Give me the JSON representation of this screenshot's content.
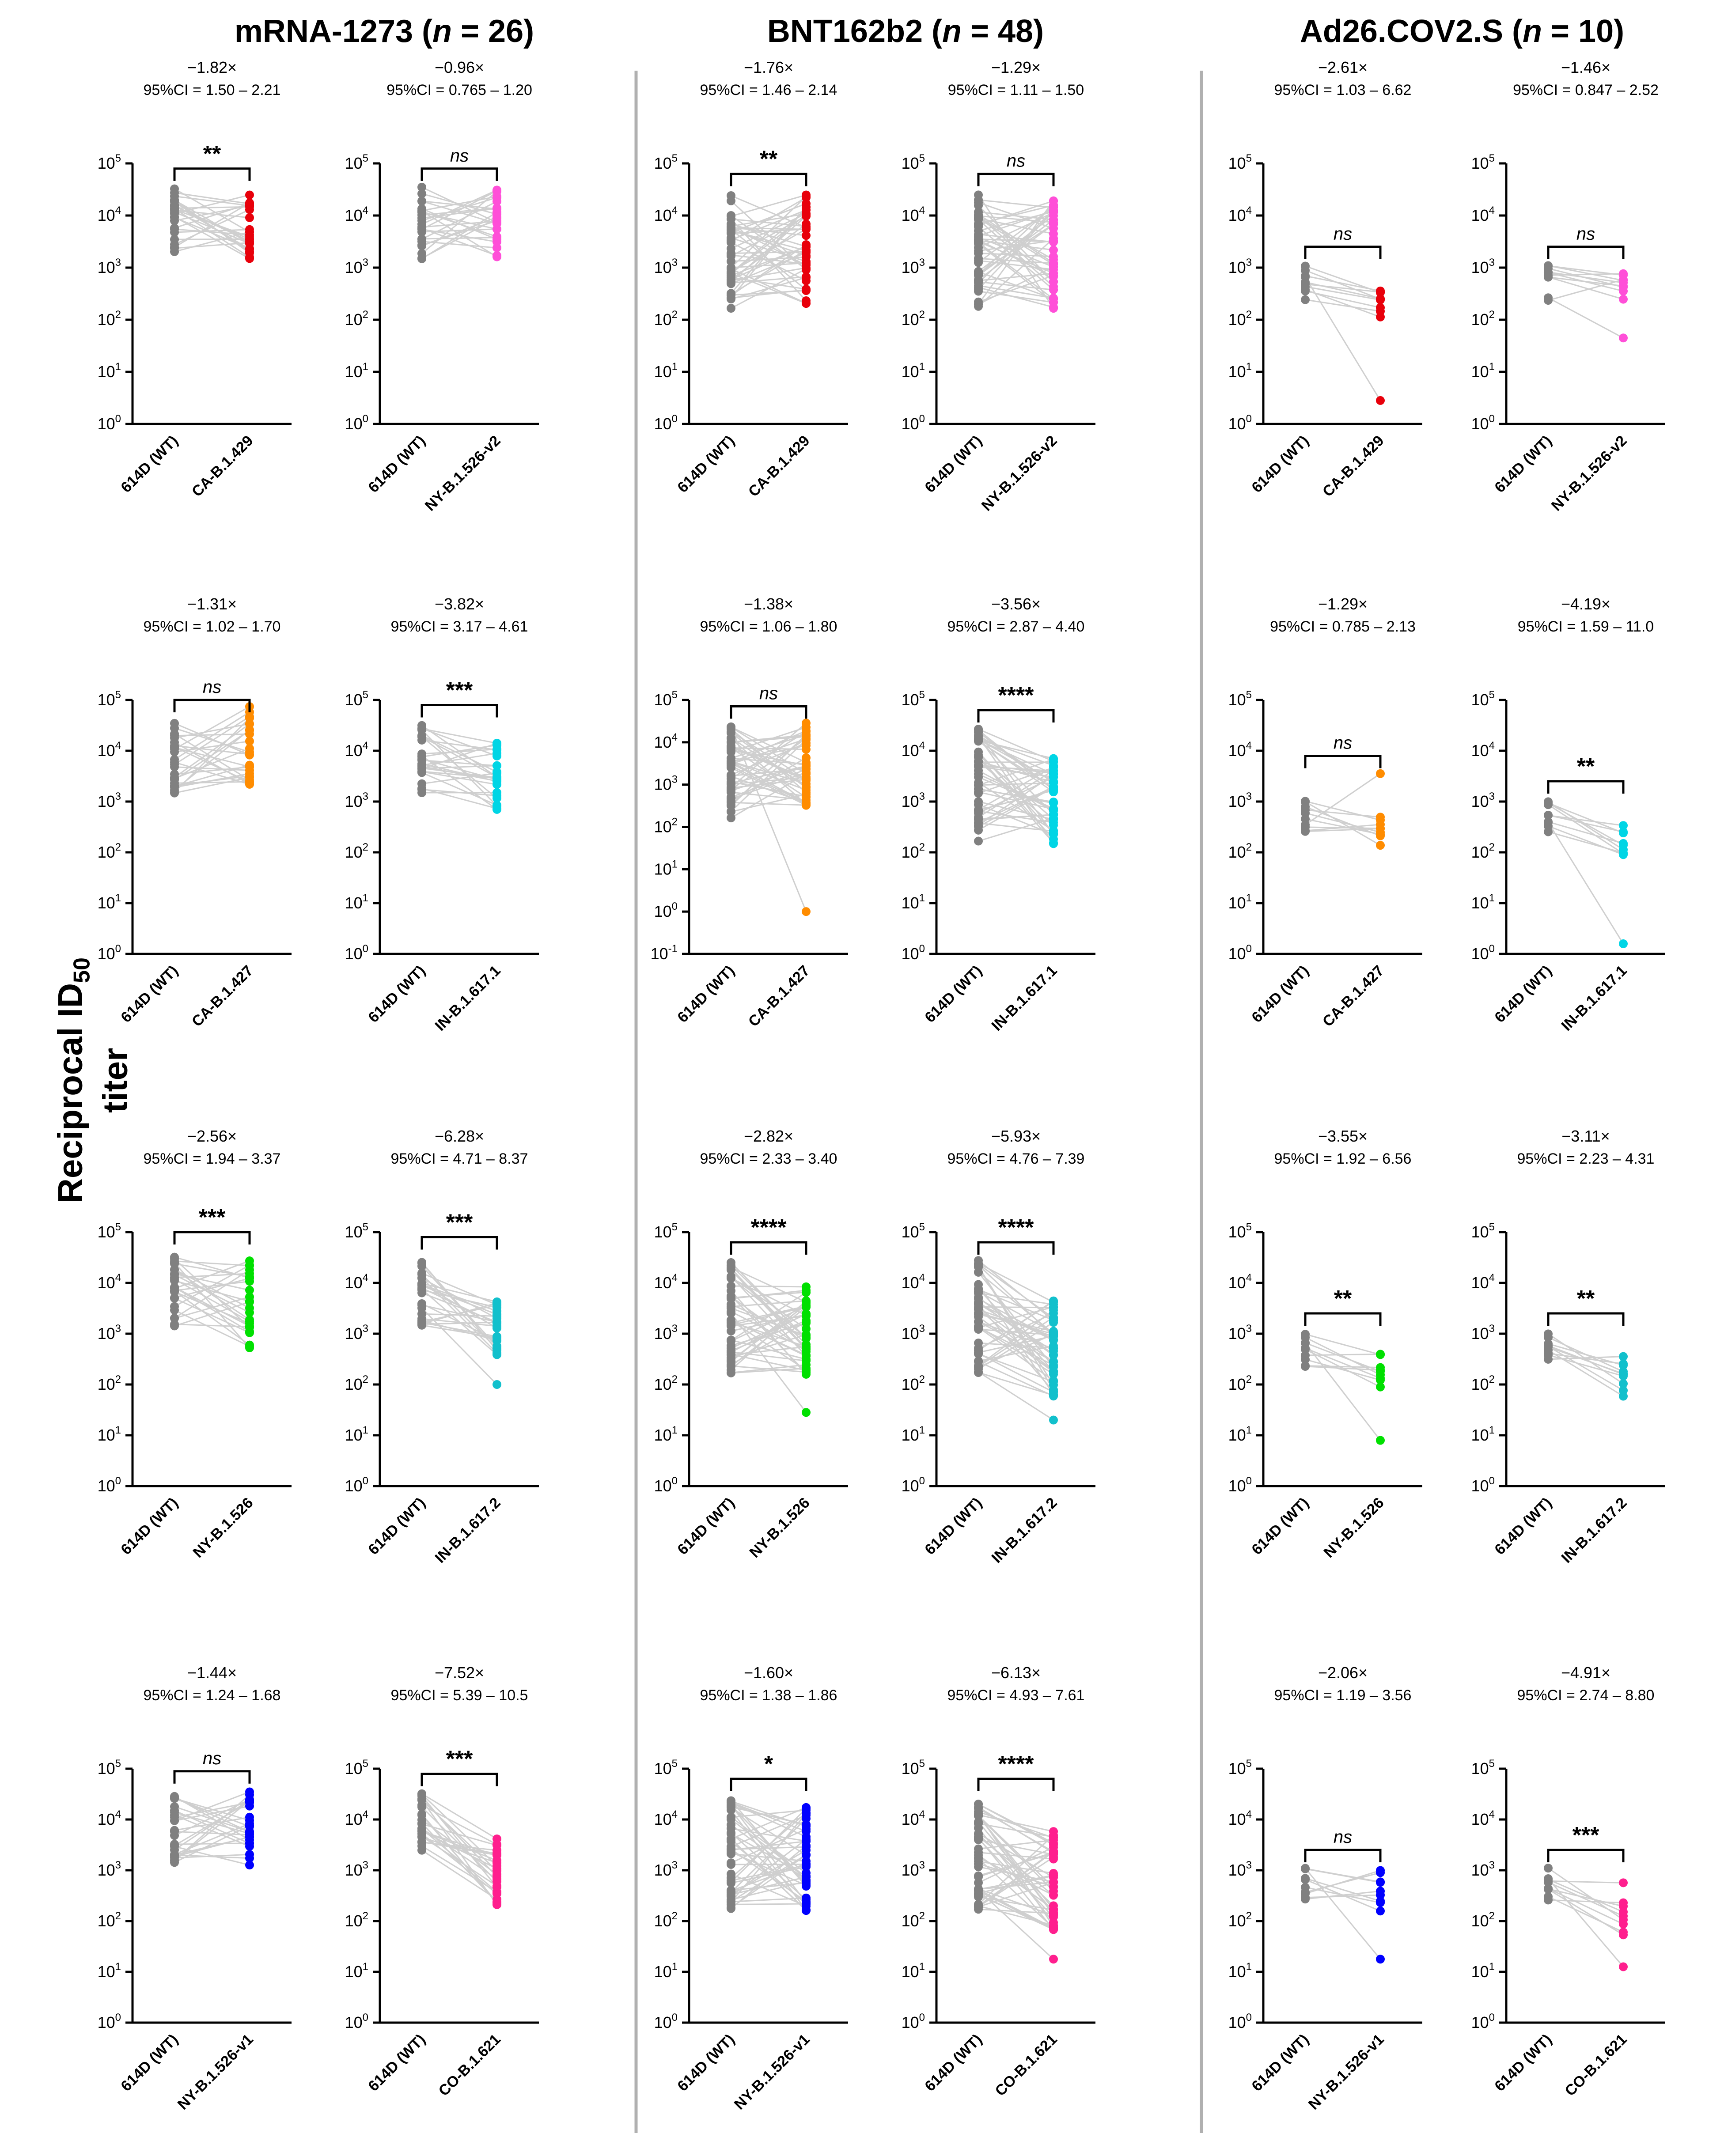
{
  "figure": {
    "group_headers": [
      {
        "name": "mRNA-1273",
        "n_text": "n",
        "eq": " = 26)",
        "open": " ("
      },
      {
        "name": "BNT162b2",
        "n_text": "n",
        "eq": " = 48)",
        "open": " ("
      },
      {
        "name": "Ad26.COV2.S",
        "n_text": "n",
        "eq": " = 10)",
        "open": " ("
      }
    ],
    "y_axis_label": {
      "main": "Reciprocal ID",
      "sub": "50",
      "tail": " titer"
    },
    "colors": {
      "wt": "#808080",
      "line": "#cfcfcf",
      "red": "#e8000b",
      "magenta": "#ff4fd8",
      "orange": "#ff8c00",
      "cyan": "#00d5e5",
      "green": "#00e000",
      "teal": "#12c0cc",
      "blue": "#0000ff",
      "pink": "#ff1f8e"
    }
  },
  "chart_data": [
    {
      "type": "scatter",
      "group": "mRNA-1273",
      "x_labels": [
        "614D (WT)",
        "CA-B.1.429"
      ],
      "fold": "−1.82×",
      "ci": "95%CI = 1.50 – 2.21",
      "sig": "**",
      "sig_italic": false,
      "ylim_exp": [
        0,
        5
      ],
      "wt_range_log": [
        3.15,
        4.55
      ],
      "var_range_log": [
        3.05,
        4.4
      ],
      "variant_color": "red",
      "n": 26
    },
    {
      "type": "scatter",
      "group": "mRNA-1273",
      "x_labels": [
        "614D (WT)",
        "NY-B.1.526-v2"
      ],
      "fold": "−0.96×",
      "ci": "95%CI = 0.765 – 1.20",
      "sig": "ns",
      "sig_italic": true,
      "ylim_exp": [
        0,
        5
      ],
      "wt_range_log": [
        3.15,
        4.55
      ],
      "var_range_log": [
        3.2,
        4.55
      ],
      "variant_color": "magenta",
      "n": 26
    },
    {
      "type": "scatter",
      "group": "BNT162b2",
      "x_labels": [
        "614D (WT)",
        "CA-B.1.429"
      ],
      "fold": "−1.76×",
      "ci": "95%CI = 1.46 – 2.14",
      "sig": "**",
      "sig_italic": false,
      "ylim_exp": [
        0,
        5
      ],
      "wt_range_log": [
        2.2,
        4.45
      ],
      "var_range_log": [
        2.3,
        4.4
      ],
      "variant_color": "red",
      "n": 48
    },
    {
      "type": "scatter",
      "group": "BNT162b2",
      "x_labels": [
        "614D (WT)",
        "NY-B.1.526-v2"
      ],
      "fold": "−1.29×",
      "ci": "95%CI = 1.11 – 1.50",
      "sig": "ns",
      "sig_italic": true,
      "ylim_exp": [
        0,
        5
      ],
      "wt_range_log": [
        2.2,
        4.45
      ],
      "var_range_log": [
        2.15,
        4.3
      ],
      "variant_color": "magenta",
      "n": 48
    },
    {
      "type": "scatter",
      "group": "Ad26.COV2.S",
      "x_labels": [
        "614D (WT)",
        "CA-B.1.429"
      ],
      "fold": "−2.61×",
      "ci": "95%CI = 1.03 – 6.62",
      "sig": "ns",
      "sig_italic": true,
      "ylim_exp": [
        0,
        5
      ],
      "wt_range_log": [
        2.35,
        3.05
      ],
      "var_range_log": [
        2.05,
        2.75
      ],
      "variant_color": "red",
      "n": 10,
      "var_outlier_log": 0.45
    },
    {
      "type": "scatter",
      "group": "Ad26.COV2.S",
      "x_labels": [
        "614D (WT)",
        "NY-B.1.526-v2"
      ],
      "fold": "−1.46×",
      "ci": "95%CI = 0.847 – 2.52",
      "sig": "ns",
      "sig_italic": true,
      "ylim_exp": [
        0,
        5
      ],
      "wt_range_log": [
        2.35,
        3.05
      ],
      "var_range_log": [
        2.3,
        3.0
      ],
      "variant_color": "magenta",
      "n": 10,
      "var_outlier_log": 1.65
    },
    {
      "type": "scatter",
      "group": "mRNA-1273",
      "x_labels": [
        "614D (WT)",
        "CA-B.1.427"
      ],
      "fold": "−1.31×",
      "ci": "95%CI = 1.02 – 1.70",
      "sig": "ns",
      "sig_italic": true,
      "ylim_exp": [
        0,
        5
      ],
      "wt_range_log": [
        3.15,
        4.55
      ],
      "var_range_log": [
        3.25,
        4.9
      ],
      "variant_color": "orange",
      "n": 26
    },
    {
      "type": "scatter",
      "group": "mRNA-1273",
      "x_labels": [
        "614D (WT)",
        "IN-B.1.617.1"
      ],
      "fold": "−3.82×",
      "ci": "95%CI = 3.17 – 4.61",
      "sig": "***",
      "sig_italic": false,
      "ylim_exp": [
        0,
        5
      ],
      "wt_range_log": [
        3.15,
        4.55
      ],
      "var_range_log": [
        2.8,
        4.2
      ],
      "variant_color": "cyan",
      "n": 26
    },
    {
      "type": "scatter",
      "group": "BNT162b2",
      "x_labels": [
        "614D (WT)",
        "CA-B.1.427"
      ],
      "fold": "−1.38×",
      "ci": "95%CI = 1.06 – 1.80",
      "sig": "ns",
      "sig_italic": true,
      "ylim_exp": [
        -1,
        5
      ],
      "wt_range_log": [
        2.2,
        4.45
      ],
      "var_range_log": [
        2.5,
        4.5
      ],
      "variant_color": "orange",
      "n": 48,
      "var_outlier_log": 0.0
    },
    {
      "type": "scatter",
      "group": "BNT162b2",
      "x_labels": [
        "614D (WT)",
        "IN-B.1.617.1"
      ],
      "fold": "−3.56×",
      "ci": "95%CI = 2.87 – 4.40",
      "sig": "****",
      "sig_italic": false,
      "ylim_exp": [
        0,
        5
      ],
      "wt_range_log": [
        2.2,
        4.45
      ],
      "var_range_log": [
        2.15,
        3.85
      ],
      "variant_color": "cyan",
      "n": 48
    },
    {
      "type": "scatter",
      "group": "Ad26.COV2.S",
      "x_labels": [
        "614D (WT)",
        "CA-B.1.427"
      ],
      "fold": "−1.29×",
      "ci": "95%CI = 0.785 – 2.13",
      "sig": "ns",
      "sig_italic": true,
      "ylim_exp": [
        0,
        5
      ],
      "wt_range_log": [
        2.35,
        3.05
      ],
      "var_range_log": [
        2.1,
        2.8
      ],
      "variant_color": "orange",
      "n": 10,
      "var_outlier_log": 3.55
    },
    {
      "type": "scatter",
      "group": "Ad26.COV2.S",
      "x_labels": [
        "614D (WT)",
        "IN-B.1.617.1"
      ],
      "fold": "−4.19×",
      "ci": "95%CI = 1.59 – 11.0",
      "sig": "**",
      "sig_italic": false,
      "ylim_exp": [
        0,
        5
      ],
      "wt_range_log": [
        2.35,
        3.05
      ],
      "var_range_log": [
        1.9,
        2.55
      ],
      "variant_color": "cyan",
      "n": 10,
      "var_outlier_log": 0.2
    },
    {
      "type": "scatter",
      "group": "mRNA-1273",
      "x_labels": [
        "614D (WT)",
        "NY-B.1.526"
      ],
      "fold": "−2.56×",
      "ci": "95%CI = 1.94 – 3.37",
      "sig": "***",
      "sig_italic": false,
      "ylim_exp": [
        0,
        5
      ],
      "wt_range_log": [
        3.15,
        4.55
      ],
      "var_range_log": [
        2.7,
        4.65
      ],
      "variant_color": "green",
      "n": 26
    },
    {
      "type": "scatter",
      "group": "mRNA-1273",
      "x_labels": [
        "614D (WT)",
        "IN-B.1.617.2"
      ],
      "fold": "−6.28×",
      "ci": "95%CI = 4.71 – 8.37",
      "sig": "***",
      "sig_italic": false,
      "ylim_exp": [
        0,
        5
      ],
      "wt_range_log": [
        3.15,
        4.55
      ],
      "var_range_log": [
        2.55,
        3.7
      ],
      "variant_color": "teal",
      "n": 26,
      "var_outlier_log": 2.0
    },
    {
      "type": "scatter",
      "group": "BNT162b2",
      "x_labels": [
        "614D (WT)",
        "NY-B.1.526"
      ],
      "fold": "−2.82×",
      "ci": "95%CI = 2.33 – 3.40",
      "sig": "****",
      "sig_italic": false,
      "ylim_exp": [
        0,
        5
      ],
      "wt_range_log": [
        2.2,
        4.45
      ],
      "var_range_log": [
        2.2,
        4.0
      ],
      "variant_color": "green",
      "n": 48,
      "var_outlier_log": 1.45
    },
    {
      "type": "scatter",
      "group": "BNT162b2",
      "x_labels": [
        "614D (WT)",
        "IN-B.1.617.2"
      ],
      "fold": "−5.93×",
      "ci": "95%CI = 4.76 – 7.39",
      "sig": "****",
      "sig_italic": false,
      "ylim_exp": [
        0,
        5
      ],
      "wt_range_log": [
        2.2,
        4.45
      ],
      "var_range_log": [
        1.7,
        3.7
      ],
      "variant_color": "teal",
      "n": 48,
      "var_outlier_log": 1.3
    },
    {
      "type": "scatter",
      "group": "Ad26.COV2.S",
      "x_labels": [
        "614D (WT)",
        "NY-B.1.526"
      ],
      "fold": "−3.55×",
      "ci": "95%CI = 1.92 – 6.56",
      "sig": "**",
      "sig_italic": false,
      "ylim_exp": [
        0,
        5
      ],
      "wt_range_log": [
        2.35,
        3.05
      ],
      "var_range_log": [
        1.7,
        2.75
      ],
      "variant_color": "green",
      "n": 10,
      "var_outlier_log": 0.9
    },
    {
      "type": "scatter",
      "group": "Ad26.COV2.S",
      "x_labels": [
        "614D (WT)",
        "IN-B.1.617.2"
      ],
      "fold": "−3.11×",
      "ci": "95%CI = 2.23 – 4.31",
      "sig": "**",
      "sig_italic": false,
      "ylim_exp": [
        0,
        5
      ],
      "wt_range_log": [
        2.35,
        3.05
      ],
      "var_range_log": [
        1.7,
        2.6
      ],
      "variant_color": "teal",
      "n": 10
    },
    {
      "type": "scatter",
      "group": "mRNA-1273",
      "x_labels": [
        "614D (WT)",
        "NY-B.1.526-v1"
      ],
      "fold": "−1.44×",
      "ci": "95%CI = 1.24 – 1.68",
      "sig": "ns",
      "sig_italic": true,
      "ylim_exp": [
        0,
        5
      ],
      "wt_range_log": [
        3.15,
        4.55
      ],
      "var_range_log": [
        3.1,
        4.6
      ],
      "variant_color": "blue",
      "n": 26
    },
    {
      "type": "scatter",
      "group": "mRNA-1273",
      "x_labels": [
        "614D (WT)",
        "CO-B.1.621"
      ],
      "fold": "−7.52×",
      "ci": "95%CI = 5.39 – 10.5",
      "sig": "***",
      "sig_italic": false,
      "ylim_exp": [
        0,
        5
      ],
      "wt_range_log": [
        3.15,
        4.55
      ],
      "var_range_log": [
        2.25,
        3.7
      ],
      "variant_color": "pink",
      "n": 26
    },
    {
      "type": "scatter",
      "group": "BNT162b2",
      "x_labels": [
        "614D (WT)",
        "NY-B.1.526-v1"
      ],
      "fold": "−1.60×",
      "ci": "95%CI = 1.38 – 1.86",
      "sig": "*",
      "sig_italic": false,
      "ylim_exp": [
        0,
        5
      ],
      "wt_range_log": [
        2.2,
        4.45
      ],
      "var_range_log": [
        2.2,
        4.3
      ],
      "variant_color": "blue",
      "n": 48
    },
    {
      "type": "scatter",
      "group": "BNT162b2",
      "x_labels": [
        "614D (WT)",
        "CO-B.1.621"
      ],
      "fold": "−6.13×",
      "ci": "95%CI = 4.93 – 7.61",
      "sig": "****",
      "sig_italic": false,
      "ylim_exp": [
        0,
        5
      ],
      "wt_range_log": [
        2.2,
        4.45
      ],
      "var_range_log": [
        1.8,
        3.8
      ],
      "variant_color": "pink",
      "n": 48,
      "var_outlier_log": 1.25
    },
    {
      "type": "scatter",
      "group": "Ad26.COV2.S",
      "x_labels": [
        "614D (WT)",
        "NY-B.1.526-v1"
      ],
      "fold": "−2.06×",
      "ci": "95%CI = 1.19 – 3.56",
      "sig": "ns",
      "sig_italic": true,
      "ylim_exp": [
        0,
        5
      ],
      "wt_range_log": [
        2.35,
        3.05
      ],
      "var_range_log": [
        2.1,
        3.0
      ],
      "variant_color": "blue",
      "n": 10,
      "var_outlier_log": 1.25
    },
    {
      "type": "scatter",
      "group": "Ad26.COV2.S",
      "x_labels": [
        "614D (WT)",
        "CO-B.1.621"
      ],
      "fold": "−4.91×",
      "ci": "95%CI = 2.74 – 8.80",
      "sig": "***",
      "sig_italic": false,
      "ylim_exp": [
        0,
        5
      ],
      "wt_range_log": [
        2.35,
        3.05
      ],
      "var_range_log": [
        1.6,
        2.8
      ],
      "variant_color": "pink",
      "n": 10,
      "var_outlier_log": 1.1
    }
  ]
}
